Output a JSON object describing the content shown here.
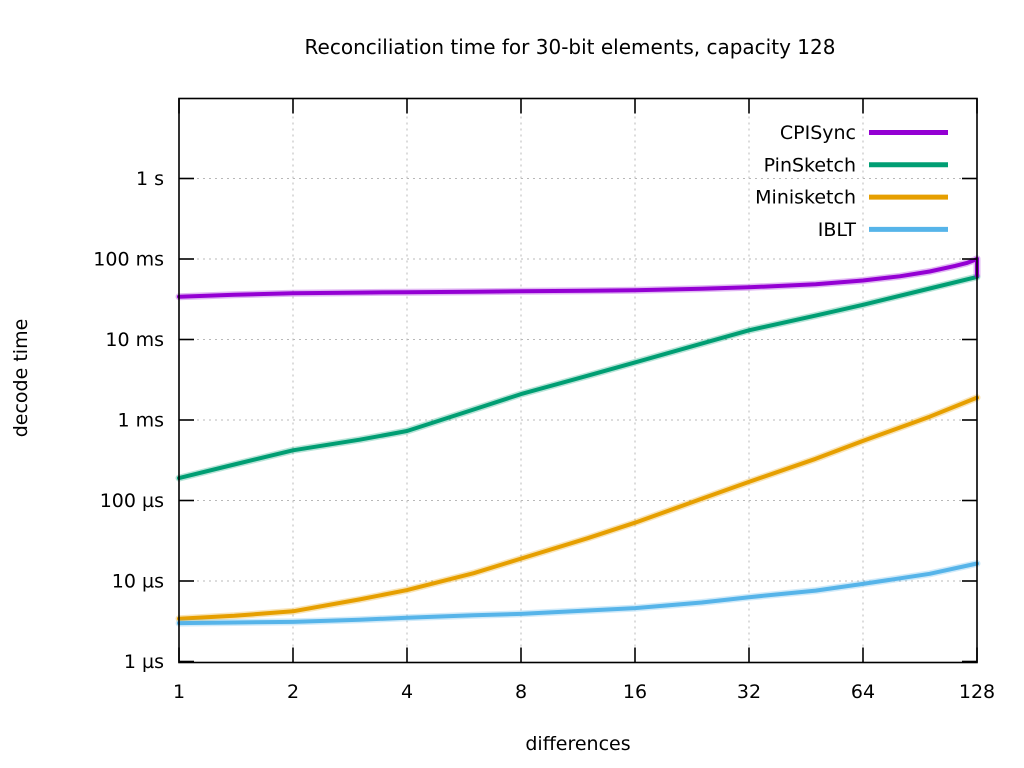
{
  "title": "Reconciliation time for 30-bit elements, capacity 128",
  "colors": {
    "background": "#ffffff",
    "border": "#000000",
    "grid": "#b8b8b8",
    "text": "#000000",
    "cpisync": "#9400d3",
    "pinsketch": "#009e73",
    "minisketch": "#e69f00",
    "iblt": "#56b4e9"
  },
  "chart_data": {
    "type": "line",
    "title": "Reconciliation time for 30-bit elements, capacity 128",
    "xlabel": "differences",
    "ylabel": "decode time",
    "x_scale": "log2",
    "y_scale": "log10",
    "grid": true,
    "legend_position": "top-right-inside",
    "xlim": [
      1,
      128
    ],
    "ylim_us": [
      1,
      9600000
    ],
    "x_ticks": [
      {
        "v": 1,
        "label": "1"
      },
      {
        "v": 2,
        "label": "2"
      },
      {
        "v": 4,
        "label": "4"
      },
      {
        "v": 8,
        "label": "8"
      },
      {
        "v": 16,
        "label": "16"
      },
      {
        "v": 32,
        "label": "32"
      },
      {
        "v": 64,
        "label": "64"
      },
      {
        "v": 128,
        "label": "128"
      }
    ],
    "y_ticks": [
      {
        "v": 1,
        "label": "1 µs"
      },
      {
        "v": 10,
        "label": "10 µs"
      },
      {
        "v": 100,
        "label": "100 µs"
      },
      {
        "v": 1000,
        "label": "1 ms"
      },
      {
        "v": 10000,
        "label": "10 ms"
      },
      {
        "v": 100000,
        "label": "100 ms"
      },
      {
        "v": 1000000,
        "label": "1 s"
      }
    ],
    "series": [
      {
        "name": "CPISync",
        "color": "#9400d3",
        "stroke_width": 4,
        "points_us": [
          [
            1,
            34000
          ],
          [
            1.4,
            36000
          ],
          [
            2,
            37500
          ],
          [
            3,
            38300
          ],
          [
            4,
            38700
          ],
          [
            6,
            39200
          ],
          [
            8,
            39700
          ],
          [
            12,
            40300
          ],
          [
            16,
            41000
          ],
          [
            24,
            42600
          ],
          [
            32,
            44500
          ],
          [
            48,
            48500
          ],
          [
            64,
            54000
          ],
          [
            80,
            61000
          ],
          [
            96,
            70000
          ],
          [
            112,
            82000
          ],
          [
            120,
            89000
          ],
          [
            126,
            97000
          ],
          [
            128,
            101000
          ],
          [
            128,
            63000
          ]
        ]
      },
      {
        "name": "PinSketch",
        "color": "#009e73",
        "stroke_width": 4,
        "points_us": [
          [
            1,
            190
          ],
          [
            1.4,
            280
          ],
          [
            2,
            420
          ],
          [
            3,
            570
          ],
          [
            4,
            730
          ],
          [
            6,
            1350
          ],
          [
            8,
            2100
          ],
          [
            12,
            3550
          ],
          [
            16,
            5200
          ],
          [
            24,
            8900
          ],
          [
            32,
            13000
          ],
          [
            48,
            19800
          ],
          [
            64,
            27000
          ],
          [
            96,
            43000
          ],
          [
            128,
            60000
          ]
        ]
      },
      {
        "name": "Minisketch",
        "color": "#e69f00",
        "stroke_width": 4,
        "points_us": [
          [
            1,
            3.4
          ],
          [
            1.4,
            3.7
          ],
          [
            2,
            4.2
          ],
          [
            3,
            5.9
          ],
          [
            4,
            7.7
          ],
          [
            6,
            12.5
          ],
          [
            8,
            19
          ],
          [
            12,
            34
          ],
          [
            16,
            53
          ],
          [
            24,
            105
          ],
          [
            32,
            170
          ],
          [
            48,
            330
          ],
          [
            64,
            550
          ],
          [
            96,
            1100
          ],
          [
            128,
            1900
          ]
        ]
      },
      {
        "name": "IBLT",
        "color": "#56b4e9",
        "stroke_width": 4,
        "points_us": [
          [
            1,
            3.0
          ],
          [
            1.4,
            3.05
          ],
          [
            2,
            3.1
          ],
          [
            3,
            3.3
          ],
          [
            4,
            3.5
          ],
          [
            6,
            3.75
          ],
          [
            8,
            3.9
          ],
          [
            12,
            4.3
          ],
          [
            16,
            4.6
          ],
          [
            24,
            5.4
          ],
          [
            32,
            6.3
          ],
          [
            48,
            7.6
          ],
          [
            64,
            9.2
          ],
          [
            96,
            12.3
          ],
          [
            128,
            16.5
          ]
        ]
      }
    ]
  }
}
